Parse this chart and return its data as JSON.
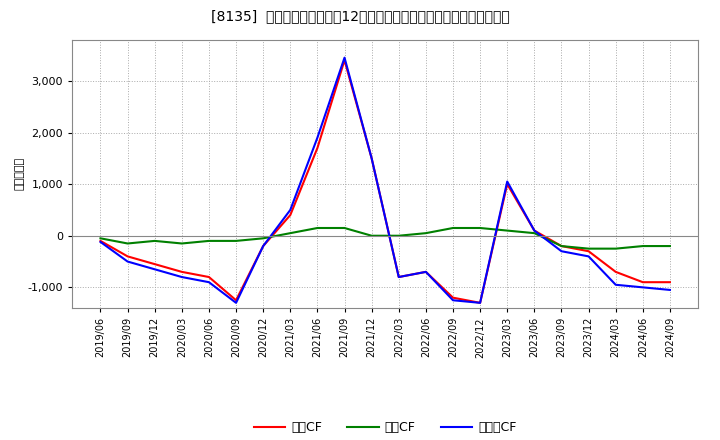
{
  "title": "[8135]  キャッシュフローの12か月移動合計の対前年同期増減額の推移",
  "ylabel": "（百万円）",
  "background_color": "#ffffff",
  "plot_bg_color": "#ffffff",
  "grid_color": "#aaaaaa",
  "x_labels": [
    "2019/06",
    "2019/09",
    "2019/12",
    "2020/03",
    "2020/06",
    "2020/09",
    "2020/12",
    "2021/03",
    "2021/06",
    "2021/09",
    "2021/12",
    "2022/03",
    "2022/06",
    "2022/09",
    "2022/12",
    "2023/03",
    "2023/06",
    "2023/09",
    "2023/12",
    "2024/03",
    "2024/06",
    "2024/09"
  ],
  "eigyo_cf": [
    -100,
    -400,
    -550,
    -700,
    -800,
    -1250,
    -200,
    400,
    1700,
    3400,
    1500,
    -800,
    -700,
    -1200,
    -1300,
    1000,
    100,
    -200,
    -300,
    -700,
    -900,
    -900
  ],
  "toshi_cf": [
    -50,
    -150,
    -100,
    -150,
    -100,
    -100,
    -50,
    50,
    150,
    150,
    0,
    0,
    50,
    150,
    150,
    100,
    50,
    -200,
    -250,
    -250,
    -200,
    -200
  ],
  "free_cf": [
    -120,
    -500,
    -650,
    -800,
    -900,
    -1300,
    -200,
    500,
    1900,
    3450,
    1500,
    -800,
    -700,
    -1250,
    -1300,
    1050,
    100,
    -300,
    -400,
    -950,
    -1000,
    -1050
  ],
  "ylim": [
    -1400,
    3800
  ],
  "yticks": [
    -1000,
    0,
    1000,
    2000,
    3000
  ],
  "eigyo_color": "#ff0000",
  "toshi_color": "#008000",
  "free_color": "#0000ff",
  "line_width": 1.5,
  "legend_eigyo": "営業CF",
  "legend_toshi": "投資CF",
  "legend_free": "フリーCF"
}
